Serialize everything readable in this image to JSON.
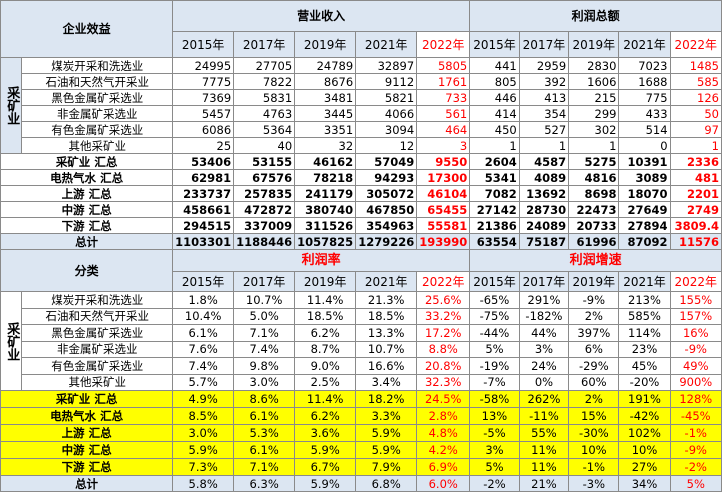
{
  "header": {
    "left_title": "企业效益",
    "revenue_title": "营业收入",
    "profit_title": "利润总额",
    "years": [
      "2015年",
      "2017年",
      "2019年",
      "2021年",
      "2022年"
    ]
  },
  "mining_label": "采矿业",
  "top_rows": [
    {
      "name": "煤炭开采和洗选业",
      "rev": [
        "24995",
        "27705",
        "24789",
        "32897",
        "5805"
      ],
      "pro": [
        "441",
        "2959",
        "2830",
        "7023",
        "1485"
      ]
    },
    {
      "name": "石油和天然气开采业",
      "rev": [
        "7775",
        "7822",
        "8676",
        "9112",
        "1761"
      ],
      "pro": [
        "805",
        "392",
        "1606",
        "1688",
        "585"
      ]
    },
    {
      "name": "黑色金属矿采选业",
      "rev": [
        "7369",
        "5831",
        "3481",
        "5821",
        "733"
      ],
      "pro": [
        "446",
        "413",
        "215",
        "775",
        "126"
      ]
    },
    {
      "name": "非金属矿采选业",
      "rev": [
        "5457",
        "4763",
        "3445",
        "4066",
        "561"
      ],
      "pro": [
        "414",
        "354",
        "299",
        "433",
        "50"
      ]
    },
    {
      "name": "有色金属矿采选业",
      "rev": [
        "6086",
        "5364",
        "3351",
        "3094",
        "464"
      ],
      "pro": [
        "450",
        "527",
        "302",
        "514",
        "97"
      ]
    },
    {
      "name": "其他采矿业",
      "rev": [
        "25",
        "40",
        "32",
        "12",
        "3"
      ],
      "pro": [
        "1",
        "1",
        "1",
        "0",
        "1"
      ]
    }
  ],
  "top_summary": [
    {
      "name": "采矿业 汇总",
      "rev": [
        "53406",
        "53155",
        "46162",
        "57049",
        "9550"
      ],
      "pro": [
        "2604",
        "4587",
        "5275",
        "10391",
        "2336"
      ]
    },
    {
      "name": "电热气水 汇总",
      "rev": [
        "62981",
        "67576",
        "78218",
        "94293",
        "17300"
      ],
      "pro": [
        "5341",
        "4089",
        "4816",
        "3089",
        "481"
      ]
    },
    {
      "name": "上游 汇总",
      "rev": [
        "233737",
        "257835",
        "241179",
        "305072",
        "46104"
      ],
      "pro": [
        "7082",
        "13692",
        "8698",
        "18070",
        "2201"
      ]
    },
    {
      "name": "中游 汇总",
      "rev": [
        "458661",
        "472872",
        "380740",
        "467850",
        "65455"
      ],
      "pro": [
        "27142",
        "28730",
        "22473",
        "27649",
        "2749"
      ]
    },
    {
      "name": "下游 汇总",
      "rev": [
        "294515",
        "337009",
        "311526",
        "354963",
        "55581"
      ],
      "pro": [
        "21386",
        "24089",
        "20733",
        "27894",
        "3809.4"
      ]
    }
  ],
  "top_total": {
    "name": "总计",
    "rev": [
      "1103301",
      "1188446",
      "1057825",
      "1279226",
      "193990"
    ],
    "pro": [
      "63554",
      "75187",
      "61996",
      "87092",
      "11576"
    ]
  },
  "bottom_header": {
    "left_title": "分类",
    "margin_title": "利润率",
    "growth_title": "利润增速"
  },
  "bottom_rows": [
    {
      "name": "煤炭开采和洗选业",
      "margin": [
        "1.8%",
        "10.7%",
        "11.4%",
        "21.3%",
        "25.6%"
      ],
      "growth": [
        "-65%",
        "291%",
        "-9%",
        "213%",
        "155%"
      ]
    },
    {
      "name": "石油和天然气开采业",
      "margin": [
        "10.4%",
        "5.0%",
        "18.5%",
        "18.5%",
        "33.2%"
      ],
      "growth": [
        "-75%",
        "-182%",
        "2%",
        "585%",
        "157%"
      ]
    },
    {
      "name": "黑色金属矿采选业",
      "margin": [
        "6.1%",
        "7.1%",
        "6.2%",
        "13.3%",
        "17.2%"
      ],
      "growth": [
        "-44%",
        "44%",
        "397%",
        "114%",
        "16%"
      ]
    },
    {
      "name": "非金属矿采选业",
      "margin": [
        "7.6%",
        "7.4%",
        "8.7%",
        "10.7%",
        "8.8%"
      ],
      "growth": [
        "5%",
        "3%",
        "6%",
        "23%",
        "-9%"
      ]
    },
    {
      "name": "有色金属矿采选业",
      "margin": [
        "7.4%",
        "9.8%",
        "9.0%",
        "16.6%",
        "20.8%"
      ],
      "growth": [
        "-19%",
        "24%",
        "-29%",
        "45%",
        "49%"
      ]
    },
    {
      "name": "其他采矿业",
      "margin": [
        "5.7%",
        "3.0%",
        "2.5%",
        "3.4%",
        "32.3%"
      ],
      "growth": [
        "-7%",
        "0%",
        "60%",
        "-20%",
        "900%"
      ]
    }
  ],
  "bottom_summary": [
    {
      "name": "采矿业 汇总",
      "margin": [
        "4.9%",
        "8.6%",
        "11.4%",
        "18.2%",
        "24.5%"
      ],
      "growth": [
        "-58%",
        "262%",
        "2%",
        "191%",
        "128%"
      ]
    },
    {
      "name": "电热气水 汇总",
      "margin": [
        "8.5%",
        "6.1%",
        "6.2%",
        "3.3%",
        "2.8%"
      ],
      "growth": [
        "13%",
        "-11%",
        "15%",
        "-42%",
        "-45%"
      ]
    },
    {
      "name": "上游 汇总",
      "margin": [
        "3.0%",
        "5.3%",
        "3.6%",
        "5.9%",
        "4.8%"
      ],
      "growth": [
        "-5%",
        "55%",
        "-30%",
        "102%",
        "-1%"
      ]
    },
    {
      "name": "中游 汇总",
      "margin": [
        "5.9%",
        "6.1%",
        "5.9%",
        "5.9%",
        "4.2%"
      ],
      "growth": [
        "3%",
        "11%",
        "10%",
        "10%",
        "-9%"
      ]
    },
    {
      "name": "下游 汇总",
      "margin": [
        "7.3%",
        "7.1%",
        "6.7%",
        "7.9%",
        "6.9%"
      ],
      "growth": [
        "5%",
        "11%",
        "-1%",
        "27%",
        "-2%"
      ]
    }
  ],
  "bottom_total": {
    "name": "总计",
    "margin": [
      "5.8%",
      "6.3%",
      "5.9%",
      "6.8%",
      "6.0%"
    ],
    "growth": [
      "-2%",
      "21%",
      "-3%",
      "34%",
      "5%"
    ]
  },
  "colors": {
    "header_blue": "#dce6f2",
    "highlight_yellow": "#ffff00",
    "red": "#ff0000"
  }
}
